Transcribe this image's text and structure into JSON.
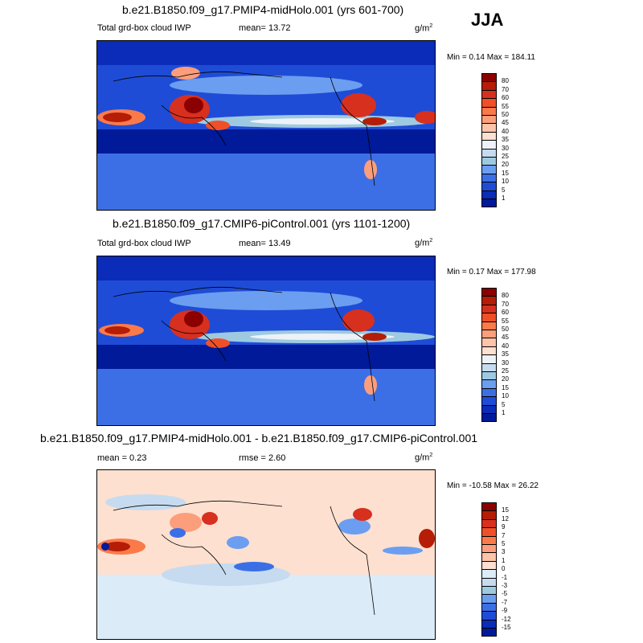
{
  "season": "JJA",
  "units_base": "g/m",
  "units_exp": "2",
  "panels": [
    {
      "title": "b.e21.B1850.f09_g17.PMIP4-midHolo.001 (yrs 601-700)",
      "field_label": "Total grd-box cloud IWP",
      "mean_label": "mean=  13.72",
      "minmax_label": "Min =   0.14 Max = 184.11",
      "colorbar_labels": [
        "80",
        "70",
        "60",
        "55",
        "50",
        "45",
        "40",
        "35",
        "30",
        "25",
        "20",
        "15",
        "10",
        "5",
        "1"
      ]
    },
    {
      "title": "b.e21.B1850.f09_g17.CMIP6-piControl.001 (yrs 1101-1200)",
      "field_label": "Total grd-box cloud IWP",
      "mean_label": "mean=  13.49",
      "minmax_label": "Min =   0.17 Max = 177.98",
      "colorbar_labels": [
        "80",
        "70",
        "60",
        "55",
        "50",
        "45",
        "40",
        "35",
        "30",
        "25",
        "20",
        "15",
        "10",
        "5",
        "1"
      ]
    },
    {
      "title": "b.e21.B1850.f09_g17.PMIP4-midHolo.001 - b.e21.B1850.f09_g17.CMIP6-piControl.001",
      "mean_label": "mean =   0.23",
      "rmse_label": "rmse =   2.60",
      "minmax_label": "Min = -10.58 Max =  26.22",
      "colorbar_labels": [
        "15",
        "12",
        "9",
        "7",
        "5",
        "3",
        "1",
        "0",
        "-1",
        "-3",
        "-5",
        "-7",
        "-9",
        "-12",
        "-15"
      ]
    }
  ],
  "colors": {
    "seq": [
      "#8b0000",
      "#b51d06",
      "#d7301f",
      "#ef5028",
      "#fb7a4a",
      "#fc9e7c",
      "#fdc4a9",
      "#fde0d0",
      "#edf2f8",
      "#c6dbef",
      "#9ecae1",
      "#6b9ef0",
      "#3c6fe6",
      "#1f4cd6",
      "#0a2cb8",
      "#001a99"
    ],
    "diff": [
      "#8b0000",
      "#b51d06",
      "#d7301f",
      "#ef5028",
      "#fb7a4a",
      "#fc9e7c",
      "#fdc4a9",
      "#fde0d0",
      "#dcebf8",
      "#c6dbef",
      "#9ecae1",
      "#6b9ef0",
      "#3c6fe6",
      "#1f4cd6",
      "#0a2cb8",
      "#001a99"
    ]
  }
}
